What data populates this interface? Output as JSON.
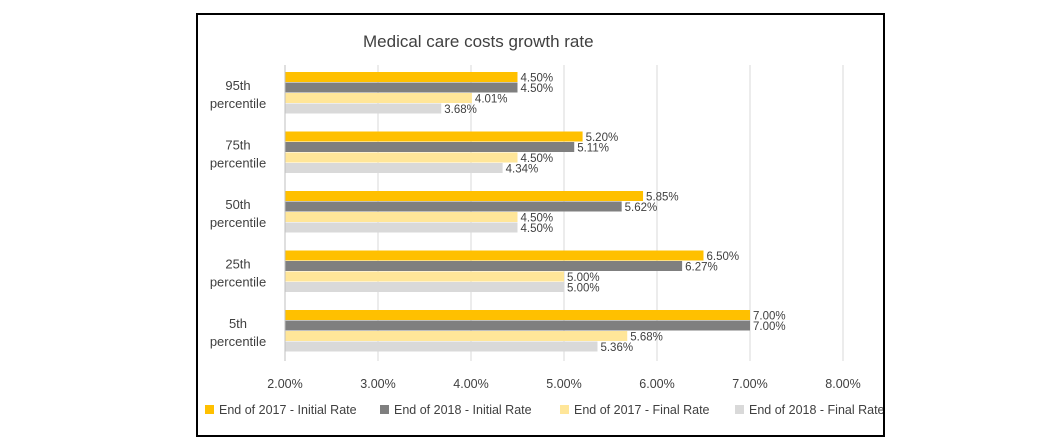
{
  "chart_data": {
    "type": "bar",
    "orientation": "horizontal",
    "title": "Medical care costs growth rate",
    "xlabel": "",
    "ylabel": "",
    "xlim": [
      2.0,
      8.0
    ],
    "grid": true,
    "legend_position": "bottom",
    "categories": [
      [
        "95th",
        "percentile"
      ],
      [
        "75th",
        "percentile"
      ],
      [
        "50th",
        "percentile"
      ],
      [
        "25th",
        "percentile"
      ],
      [
        "5th",
        "percentile"
      ]
    ],
    "x_ticks": [
      "2.00%",
      "3.00%",
      "4.00%",
      "5.00%",
      "6.00%",
      "7.00%",
      "8.00%"
    ],
    "series": [
      {
        "name": "End of 2017 - Initial Rate",
        "color": "#FFC000",
        "values": [
          4.5,
          5.2,
          5.85,
          6.5,
          7.0
        ],
        "labels": [
          "4.50%",
          "5.20%",
          "5.85%",
          "6.50%",
          "7.00%"
        ]
      },
      {
        "name": "End of 2018 - Initial Rate",
        "color": "#7F7F7F",
        "values": [
          4.5,
          5.11,
          5.62,
          6.27,
          7.0
        ],
        "labels": [
          "4.50%",
          "5.11%",
          "5.62%",
          "6.27%",
          "7.00%"
        ]
      },
      {
        "name": "End of 2017 - Final Rate",
        "color": "#FFE699",
        "values": [
          4.01,
          4.5,
          4.5,
          5.0,
          5.68
        ],
        "labels": [
          "4.01%",
          "4.50%",
          "4.50%",
          "5.00%",
          "5.68%"
        ]
      },
      {
        "name": "End of 2018 - Final Rate",
        "color": "#D9D9D9",
        "values": [
          3.68,
          4.34,
          4.5,
          5.0,
          5.36
        ],
        "labels": [
          "3.68%",
          "4.34%",
          "4.50%",
          "5.00%",
          "5.36%"
        ]
      }
    ]
  }
}
